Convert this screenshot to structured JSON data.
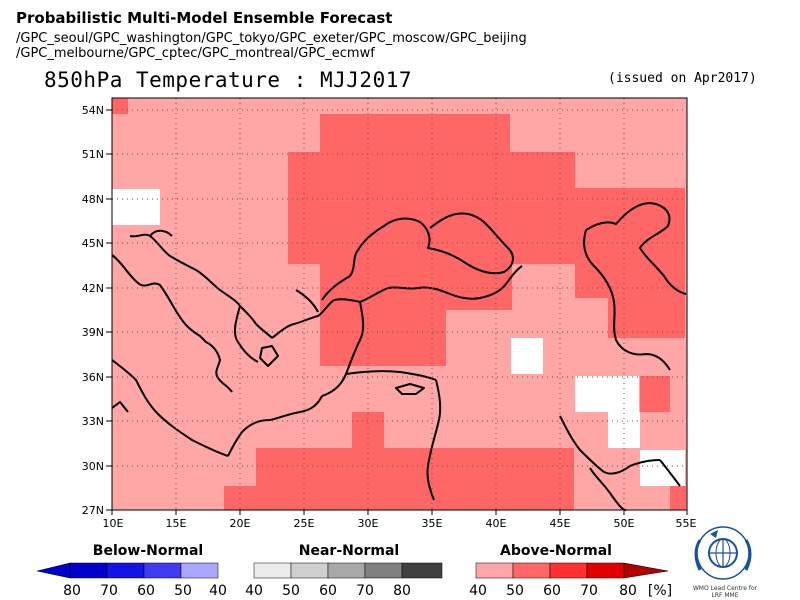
{
  "header": {
    "title": "Probabilistic Multi-Model Ensemble Forecast",
    "sources_line1": "/GPC_seoul/GPC_washington/GPC_tokyo/GPC_exeter/GPC_moscow/GPC_beijing",
    "sources_line2": "/GPC_melbourne/GPC_cptec/GPC_montreal/GPC_ecmwf"
  },
  "map": {
    "title": "850hPa Temperature : MJJ2017",
    "issued": "(issued on Apr2017)",
    "lat_labels": [
      "54N",
      "51N",
      "48N",
      "45N",
      "42N",
      "39N",
      "36N",
      "33N",
      "30N",
      "27N"
    ],
    "lon_labels": [
      "10E",
      "15E",
      "20E",
      "25E",
      "30E",
      "35E",
      "40E",
      "45E",
      "50E",
      "55E"
    ],
    "extent": {
      "lon_min": 10,
      "lon_max": 55,
      "lat_min": 27,
      "lat_max": 55
    }
  },
  "legend": {
    "below": {
      "title": "Below-Normal",
      "values": [
        "80",
        "70",
        "60",
        "50",
        "40"
      ],
      "colors": [
        "#0000cc",
        "#1414e6",
        "#3c3cf0",
        "#6e6ef5",
        "#a8a8ff"
      ]
    },
    "near": {
      "title": "Near-Normal",
      "values": [
        "40",
        "50",
        "60",
        "70",
        "80"
      ],
      "colors": [
        "#ececec",
        "#cfcfcf",
        "#a8a8a8",
        "#808080",
        "#404040"
      ]
    },
    "above": {
      "title": "Above-Normal",
      "values": [
        "40",
        "50",
        "60",
        "70",
        "80"
      ],
      "colors": [
        "#ffa6a6",
        "#ff6666",
        "#ff3030",
        "#e00000",
        "#b00000"
      ],
      "unit": "[%]"
    }
  },
  "colors": {
    "above40": "#ffa6a6",
    "above50": "#ff6666",
    "none": "#ffffff"
  },
  "logo": {
    "text": "WMO Lead Centre for LRF MME"
  }
}
